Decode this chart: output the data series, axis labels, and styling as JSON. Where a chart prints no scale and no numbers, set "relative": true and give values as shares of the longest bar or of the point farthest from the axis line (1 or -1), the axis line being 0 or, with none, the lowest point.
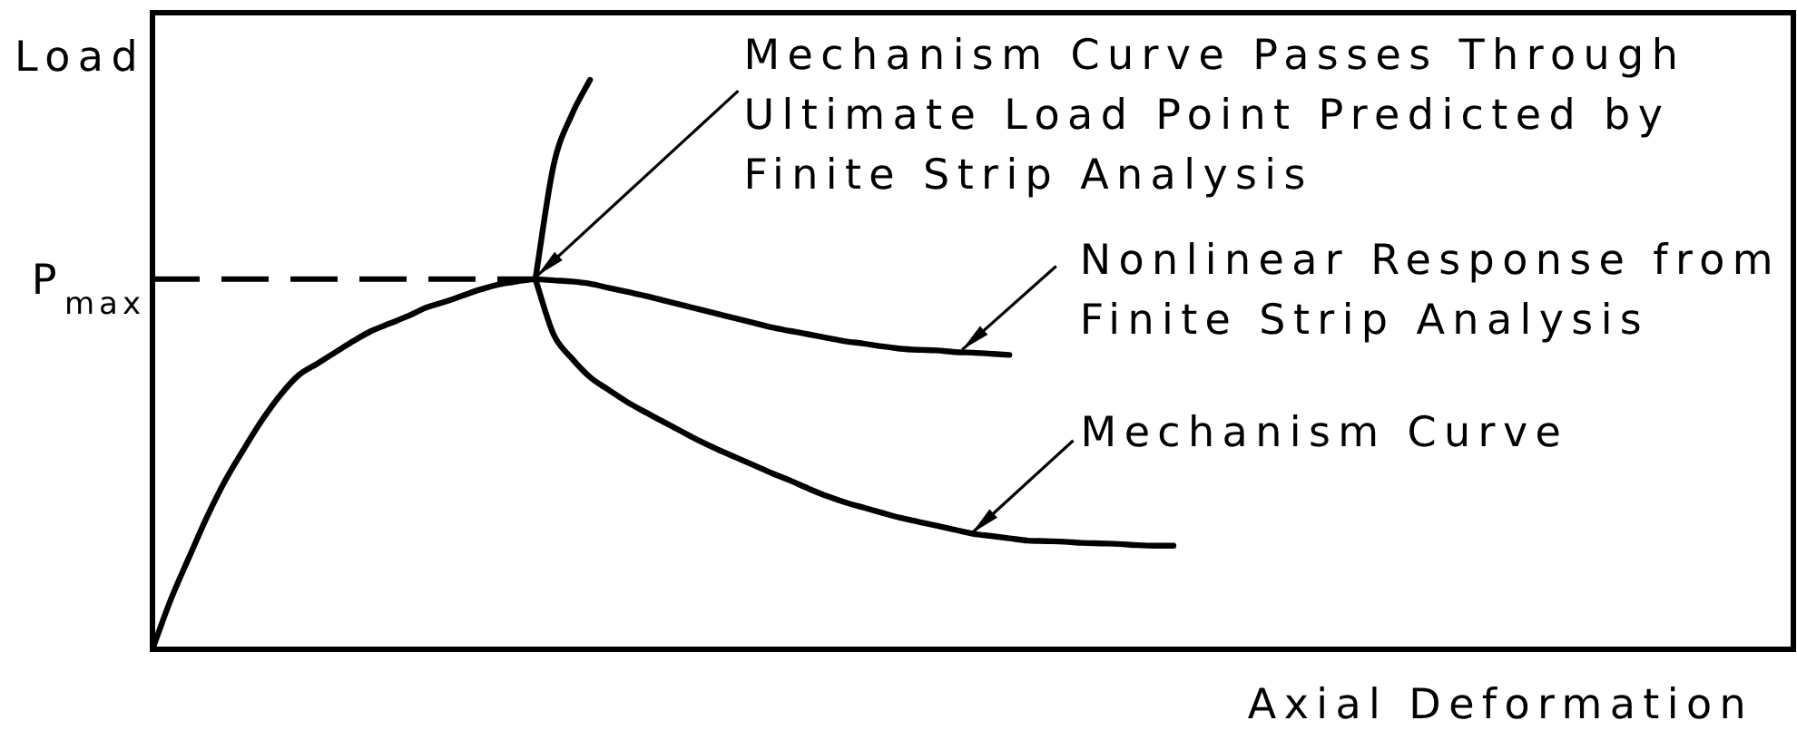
{
  "chart_data": {
    "type": "line",
    "relative": true,
    "xlabel": "Axial Deformation",
    "ylabel": "Load",
    "marker": "none",
    "categories": [
      null,
      null,
      null,
      null,
      null,
      null,
      null,
      null,
      null,
      null,
      null,
      null,
      null,
      null,
      null,
      null,
      null,
      null,
      null,
      null,
      null,
      null,
      null,
      null,
      null,
      null,
      null,
      null,
      null,
      null,
      null,
      null,
      null,
      null,
      null,
      null,
      null,
      null,
      null,
      null,
      null,
      null,
      null,
      null,
      null,
      null,
      null,
      null,
      null,
      null,
      null,
      null,
      null,
      null,
      null,
      null,
      null,
      null,
      null,
      null,
      null,
      null,
      null,
      null,
      null,
      null,
      null,
      null,
      null,
      null,
      null,
      null,
      null,
      null,
      null,
      null,
      null,
      null,
      null,
      null,
      null,
      null,
      null,
      null,
      null,
      null,
      null,
      null,
      null,
      null,
      null
    ],
    "series": [
      {
        "color": "#000000",
        "values": [
          0,
          0.087,
          0.161,
          0.233,
          0.297,
          0.351,
          0.402,
          0.446,
          0.481,
          0.501,
          0.521,
          0.541,
          0.559,
          0.572,
          0.585,
          0.6,
          0.61,
          0.621,
          0.632,
          0.641,
          0.646,
          0.65,
          0.648,
          0.646,
          0.642,
          0.635,
          0.628,
          0.621,
          0.613,
          0.605,
          0.597,
          0.589,
          0.581,
          0.573,
          0.565,
          0.559,
          0.553,
          0.547,
          0.541,
          0.537,
          0.532,
          0.528,
          0.526,
          0.525,
          0.522,
          0.521,
          0.519,
          0.517,
          null,
          null,
          null,
          null,
          null,
          null,
          null,
          null,
          null,
          null,
          null,
          null,
          null,
          null,
          null,
          null,
          null,
          null,
          null,
          null,
          null,
          null,
          null,
          null,
          null,
          null,
          null,
          null,
          null,
          null,
          null,
          null,
          null,
          null,
          null,
          null,
          null,
          null,
          null,
          null,
          null,
          null,
          null
        ]
      },
      {
        "color": "#000000",
        "values": [
          null,
          null,
          null,
          null,
          null,
          null,
          null,
          null,
          null,
          null,
          null,
          null,
          null,
          null,
          null,
          null,
          null,
          null,
          null,
          null,
          null,
          0.65,
          0.553,
          0.511,
          0.478,
          0.456,
          0.435,
          0.417,
          0.4,
          0.383,
          0.366,
          0.351,
          0.337,
          0.323,
          0.309,
          0.296,
          0.282,
          0.269,
          0.258,
          0.249,
          0.24,
          0.231,
          0.224,
          0.217,
          0.21,
          0.203,
          0.199,
          0.195,
          0.191,
          0.19,
          0.189,
          0.187,
          0.186,
          0.185,
          0.183,
          0.182,
          0.182,
          null,
          null,
          null,
          null,
          null,
          null,
          null,
          null,
          null,
          null,
          null,
          null,
          null,
          null,
          null,
          null,
          null,
          null,
          null,
          null,
          null,
          null,
          null,
          null,
          null,
          null,
          null,
          null,
          null,
          null,
          null,
          null,
          null,
          null
        ]
      },
      {
        "color": "#000000",
        "values": [
          null,
          null,
          null,
          null,
          null,
          null,
          null,
          null,
          null,
          null,
          null,
          null,
          null,
          null,
          null,
          null,
          null,
          null,
          null,
          null,
          null,
          0.65,
          0.85,
          0.939,
          1,
          null,
          null,
          null,
          null,
          null,
          null,
          null,
          null,
          null,
          null,
          null,
          null,
          null,
          null,
          null,
          null,
          null,
          null,
          null,
          null,
          null,
          null,
          null,
          null,
          null,
          null,
          null,
          null,
          null,
          null,
          null,
          null,
          null,
          null,
          null,
          null,
          null,
          null,
          null,
          null,
          null,
          null,
          null,
          null,
          null,
          null,
          null,
          null,
          null,
          null,
          null,
          null,
          null,
          null,
          null,
          null,
          null,
          null,
          null,
          null,
          null,
          null,
          null,
          null,
          null,
          null
        ]
      }
    ],
    "ref_lines": [
      {
        "axis": "y",
        "value": 0.65,
        "label": "P$_{max}$",
        "line_style": "dashed"
      }
    ],
    "annotations": [
      "Mechanism Curve Passes Through Ultimate Load Point Predicted by Finite Strip Analysis",
      "Nonlinear Response from Finite Strip Analysis",
      "Mechanism Curve"
    ]
  }
}
